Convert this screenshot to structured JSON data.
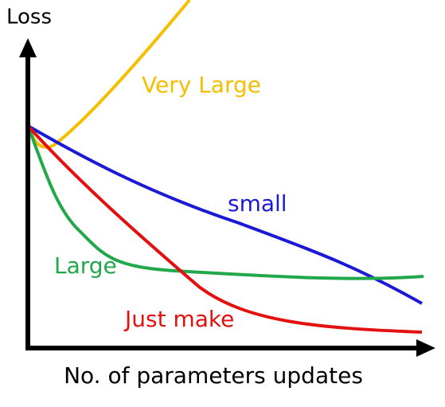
{
  "axis": {
    "y_label": "Loss",
    "x_label": "No. of parameters updates"
  },
  "curves": [
    {
      "label": "Very Large"
    },
    {
      "label": "small"
    },
    {
      "label": "Large"
    },
    {
      "label": "Just make"
    }
  ]
}
